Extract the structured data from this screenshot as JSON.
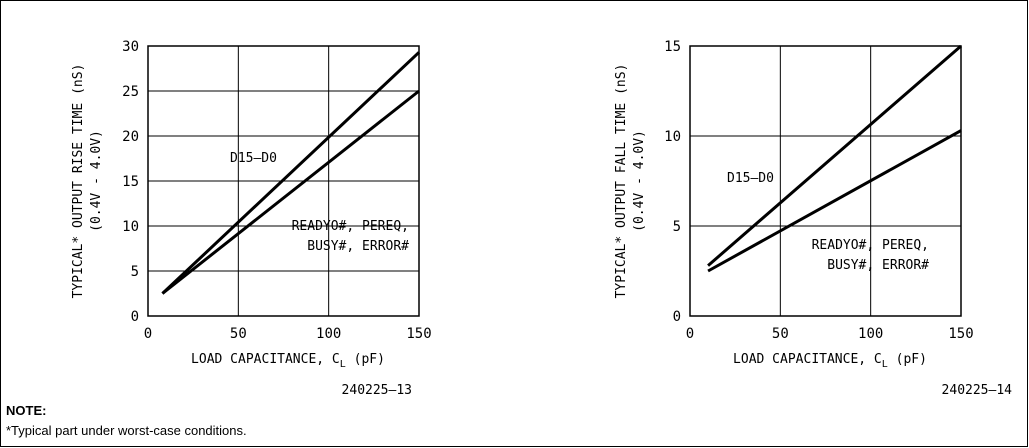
{
  "chart_data": [
    {
      "type": "line",
      "title": "",
      "xlabel": "LOAD CAPACITANCE, C",
      "xlabel_sub": "L",
      "xlabel_unit": "(pF)",
      "ylabel": "TYPICAL* OUTPUT RISE TIME (nS)",
      "ylabel2": "(0.4V - 4.0V)",
      "xlim": [
        0,
        150
      ],
      "ylim": [
        0,
        30
      ],
      "xticks": [
        0,
        50,
        100,
        150
      ],
      "yticks": [
        0,
        5,
        10,
        15,
        20,
        25,
        30
      ],
      "grid": true,
      "series": [
        {
          "name": "D15-D0",
          "x": [
            8,
            150
          ],
          "y": [
            2.5,
            29.3
          ]
        },
        {
          "name": "READYO#, PEREQ, BUSY#, ERROR#",
          "x": [
            8,
            150
          ],
          "y": [
            2.5,
            25
          ]
        }
      ],
      "label_d15": "D15–D0",
      "label_ready_1": "READYO#, PEREQ,",
      "label_ready_2": "BUSY#, ERROR#",
      "figure_id": "240225–13"
    },
    {
      "type": "line",
      "title": "",
      "xlabel": "LOAD CAPACITANCE, C",
      "xlabel_sub": "L",
      "xlabel_unit": "(pF)",
      "ylabel": "TYPICAL* OUTPUT FALL TIME (nS)",
      "ylabel2": "(0.4V - 4.0V)",
      "xlim": [
        0,
        150
      ],
      "ylim": [
        0,
        15
      ],
      "xticks": [
        0,
        50,
        100,
        150
      ],
      "yticks": [
        0,
        5,
        10,
        15
      ],
      "grid": true,
      "series": [
        {
          "name": "D15-D0",
          "x": [
            10,
            150
          ],
          "y": [
            2.8,
            15
          ]
        },
        {
          "name": "READYO#, PEREQ, BUSY#, ERROR#",
          "x": [
            10,
            150
          ],
          "y": [
            2.5,
            10.3
          ]
        }
      ],
      "label_d15": "D15–D0",
      "label_ready_1": "READYO#, PEREQ,",
      "label_ready_2": "BUSY#, ERROR#",
      "figure_id": "240225–14"
    }
  ],
  "note": {
    "title": "NOTE:",
    "text": "*Typical part under worst-case conditions."
  }
}
